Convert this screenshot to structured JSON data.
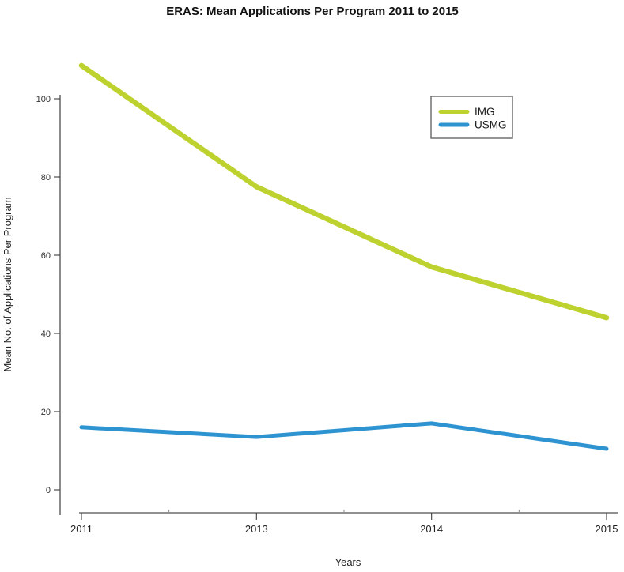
{
  "title": "ERAS: Mean Applications Per Program 2011 to 2015",
  "axes": {
    "x_label": "Years",
    "y_label": "Mean No. of Applications Per Program",
    "x_ticks": [
      "2011",
      "2013",
      "2014",
      "2015"
    ],
    "y_ticks": [
      0,
      20,
      40,
      60,
      80,
      100
    ]
  },
  "legend": {
    "entries": [
      {
        "label": "IMG",
        "color": "#bdd22e"
      },
      {
        "label": "USMG",
        "color": "#2e93d1"
      }
    ]
  },
  "colors": {
    "img_line": "#bdd22e",
    "usmg_line": "#2e93d1",
    "axis_line": "#4d4d4d",
    "background": "#ffffff"
  },
  "chart_data": {
    "type": "line",
    "categories": [
      "2011",
      "2013",
      "2014",
      "2015"
    ],
    "series": [
      {
        "name": "IMG",
        "color": "#bdd22e",
        "values": [
          108.5,
          77.5,
          57,
          44
        ]
      },
      {
        "name": "USMG",
        "color": "#2e93d1",
        "values": [
          16,
          13.5,
          17,
          10.5
        ]
      }
    ],
    "title": "ERAS: Mean Applications Per Program 2011 to 2015",
    "xlabel": "Years",
    "ylabel": "Mean No. of Applications Per Program",
    "ylim": [
      0,
      112
    ],
    "yticks": [
      0,
      20,
      40,
      60,
      80,
      100
    ],
    "grid": false,
    "legend_position": "inside-upper-right",
    "notes": "x tick labels are equally spaced categories; 2012 is not labeled on the axis"
  }
}
